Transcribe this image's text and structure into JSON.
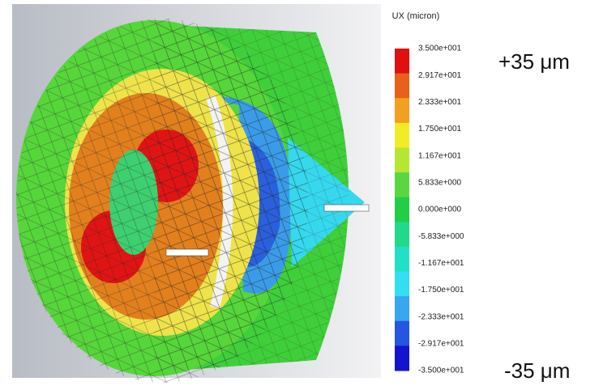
{
  "legend": {
    "title": "UX (micron)",
    "labels": [
      "3.500e+001",
      "2.917e+001",
      "2.333e+001",
      "1.750e+001",
      "1.167e+001",
      "5.833e+000",
      "0.000e+000",
      "-5.833e+000",
      "-1.167e+001",
      "-1.750e+001",
      "-2.333e+001",
      "-2.917e+001",
      "-3.500e+001"
    ],
    "colors": [
      "#e01010",
      "#e8601a",
      "#f2a020",
      "#f2ec28",
      "#b6e632",
      "#5cd640",
      "#22ce48",
      "#22d88a",
      "#22e0c6",
      "#34def2",
      "#38a6f0",
      "#2456e0",
      "#1414cc"
    ]
  },
  "annotations": {
    "max": "+35 μm",
    "min": "-35 μm"
  }
}
